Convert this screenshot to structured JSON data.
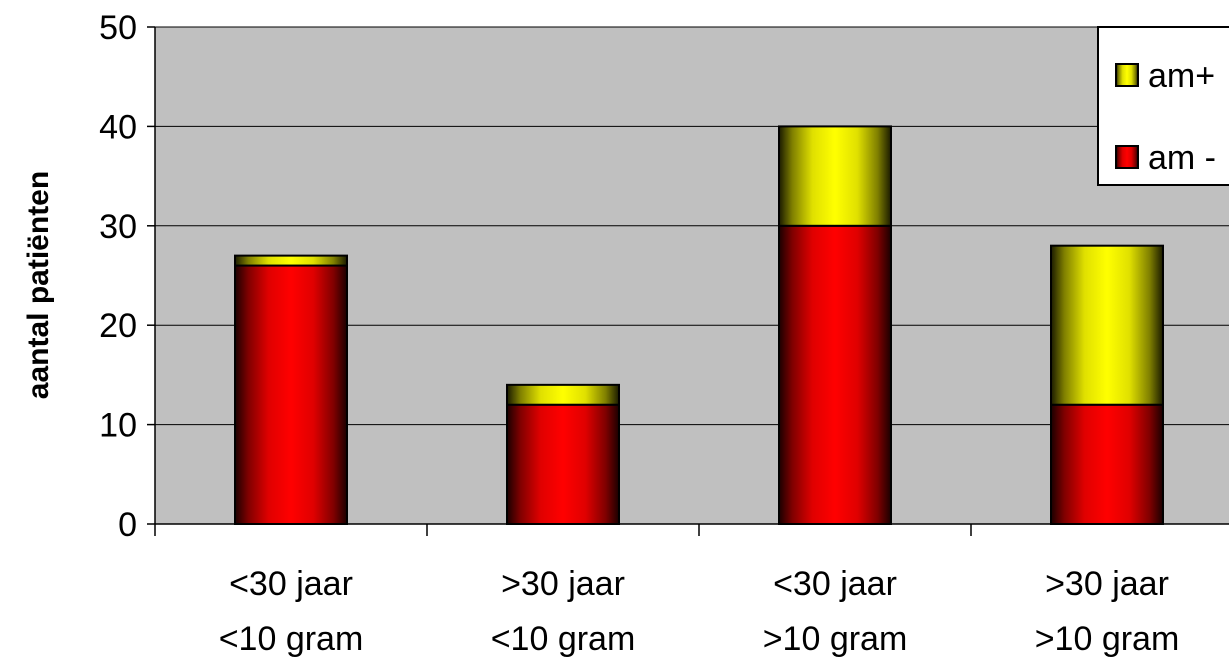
{
  "chart_data": {
    "type": "bar",
    "stacked": true,
    "title": "",
    "xlabel": "",
    "ylabel": "aantal patiënten",
    "ylim": [
      0,
      50
    ],
    "yticks": [
      0,
      10,
      20,
      30,
      40,
      50
    ],
    "grid": true,
    "legend_position": "top-right",
    "categories": [
      [
        "<30 jaar",
        "<10 gram"
      ],
      [
        ">30 jaar",
        "<10 gram"
      ],
      [
        "<30 jaar",
        ">10 gram"
      ],
      [
        ">30 jaar",
        ">10 gram"
      ]
    ],
    "series": [
      {
        "name": "am -",
        "values": [
          26,
          12,
          30,
          12
        ],
        "color": "#ff0000"
      },
      {
        "name": "am+",
        "values": [
          1,
          2,
          10,
          16
        ],
        "color": "#ffff00"
      }
    ],
    "legend_order": [
      "am+",
      "am -"
    ]
  },
  "colors": {
    "plot_background": "#c0c0c0",
    "gridline": "#000000"
  }
}
